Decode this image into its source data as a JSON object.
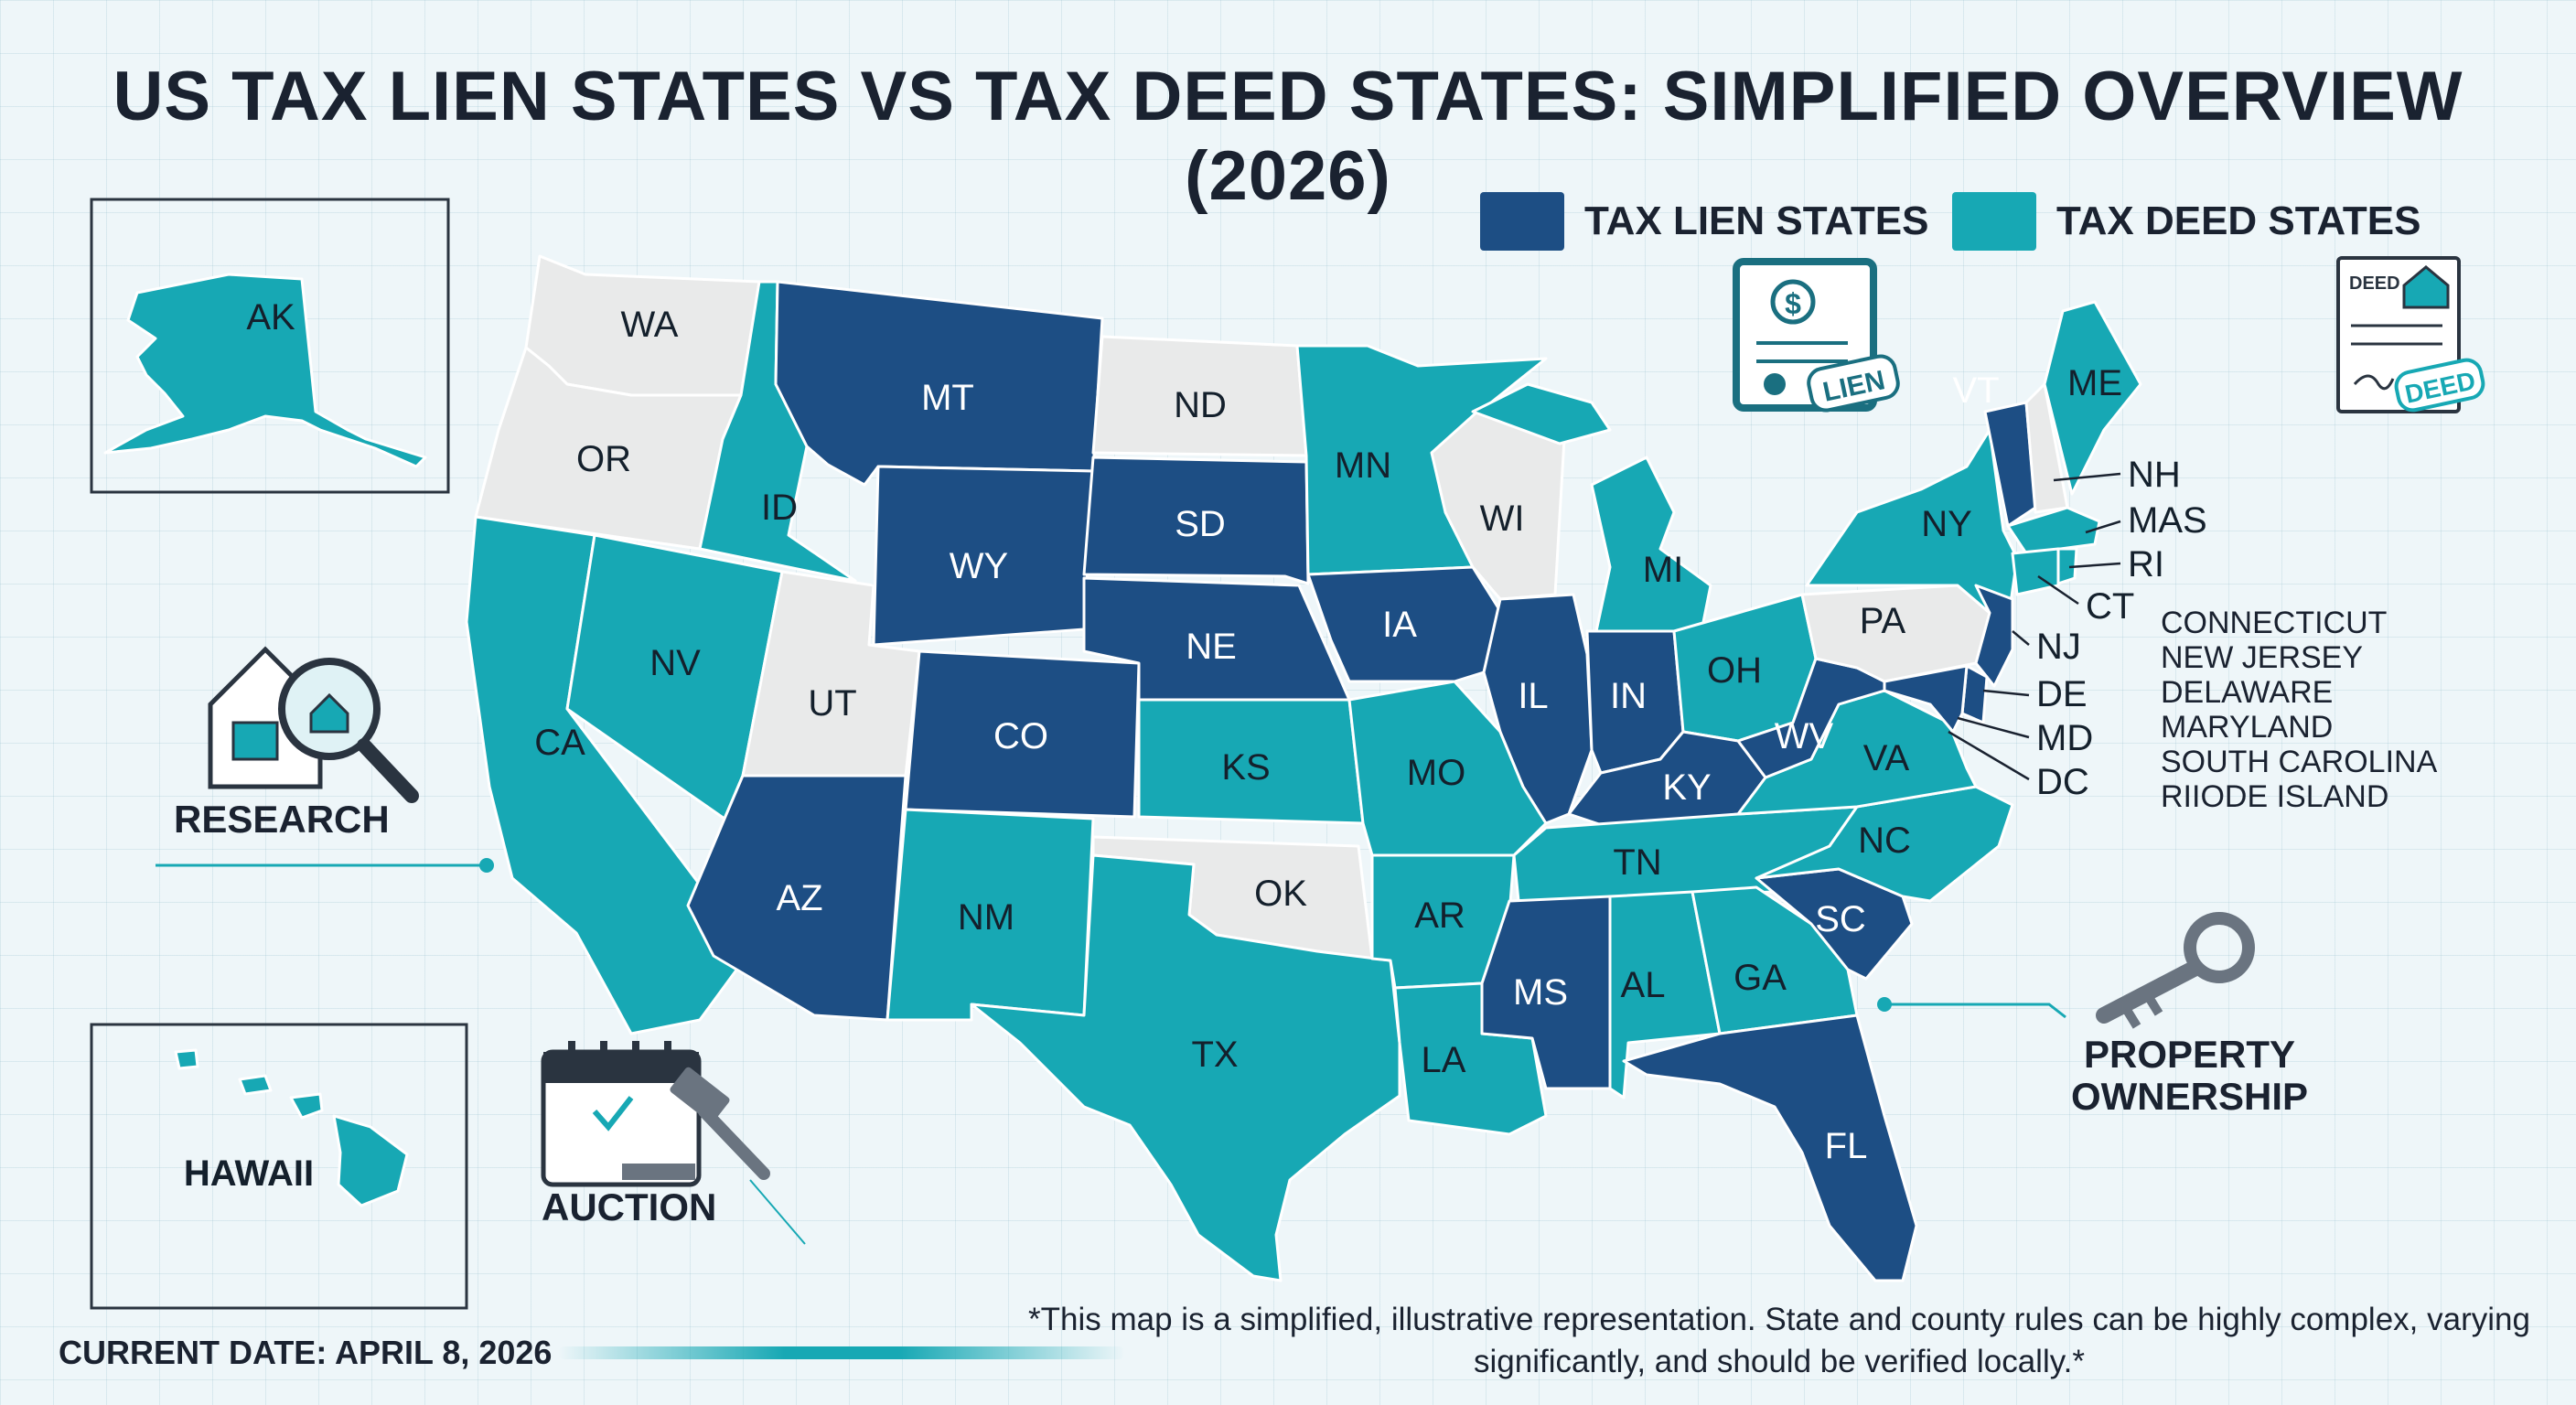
{
  "title": "US TAX LIEN STATES VS TAX DEED STATES: SIMPLIFIED OVERVIEW (2026)",
  "colors": {
    "lien": "#1d4e84",
    "deed": "#17a8b4",
    "other": "#e9eaea",
    "outline": "#ffffff"
  },
  "legend": {
    "lien_label": "TAX LIEN STATES",
    "deed_label": "TAX DEED STATES"
  },
  "icons": {
    "lien_certificate": {
      "stamp": "LIEN",
      "symbol": "$"
    },
    "deed_document": {
      "header": "DEED",
      "stamp": "DEED"
    },
    "research": "research-house-magnifier-icon",
    "auction": "auction-calendar-gavel-icon",
    "property": "key-icon"
  },
  "states": {
    "WA": {
      "label": "WA",
      "status": "other"
    },
    "OR": {
      "label": "OR",
      "status": "other"
    },
    "CA": {
      "label": "CA",
      "status": "deed"
    },
    "ID": {
      "label": "ID",
      "status": "deed"
    },
    "NV": {
      "label": "NV",
      "status": "deed"
    },
    "UT": {
      "label": "UT",
      "status": "other"
    },
    "AZ": {
      "label": "AZ",
      "status": "lien"
    },
    "MT": {
      "label": "MT",
      "status": "lien"
    },
    "WY": {
      "label": "WY",
      "status": "lien"
    },
    "CO": {
      "label": "CO",
      "status": "lien"
    },
    "NM": {
      "label": "NM",
      "status": "deed"
    },
    "ND": {
      "label": "ND",
      "status": "other"
    },
    "SD": {
      "label": "SD",
      "status": "lien"
    },
    "NE": {
      "label": "NE",
      "status": "lien"
    },
    "KS": {
      "label": "KS",
      "status": "deed"
    },
    "OK": {
      "label": "OK",
      "status": "other"
    },
    "TX": {
      "label": "TX",
      "status": "deed"
    },
    "MN": {
      "label": "MN",
      "status": "deed"
    },
    "IA": {
      "label": "IA",
      "status": "lien"
    },
    "MO": {
      "label": "MO",
      "status": "deed"
    },
    "AR": {
      "label": "AR",
      "status": "deed"
    },
    "LA": {
      "label": "LA",
      "status": "deed"
    },
    "WI": {
      "label": "WI",
      "status": "other"
    },
    "IL": {
      "label": "IL",
      "status": "lien"
    },
    "MI": {
      "label": "MI",
      "status": "deed"
    },
    "IN": {
      "label": "IN",
      "status": "lien"
    },
    "OH": {
      "label": "OH",
      "status": "deed"
    },
    "KY": {
      "label": "KY",
      "status": "lien"
    },
    "TN": {
      "label": "TN",
      "status": "deed"
    },
    "MS": {
      "label": "MS",
      "status": "lien"
    },
    "AL": {
      "label": "AL",
      "status": "deed"
    },
    "GA": {
      "label": "GA",
      "status": "deed"
    },
    "FL": {
      "label": "FL",
      "status": "lien"
    },
    "SC": {
      "label": "SC",
      "status": "lien"
    },
    "NC": {
      "label": "NC",
      "status": "deed"
    },
    "VA": {
      "label": "VA",
      "status": "deed"
    },
    "WV": {
      "label": "WV",
      "status": "lien"
    },
    "PA": {
      "label": "PA",
      "status": "other"
    },
    "NY": {
      "label": "NY",
      "status": "deed"
    },
    "NJ": {
      "label": "NJ",
      "status": "lien"
    },
    "DE": {
      "label": "DE",
      "status": "lien"
    },
    "MD": {
      "label": "MD",
      "status": "lien"
    },
    "VT": {
      "label": "VT",
      "status": "lien"
    },
    "NH": {
      "label": "NH",
      "status": "other"
    },
    "ME": {
      "label": "ME",
      "status": "deed"
    },
    "MA": {
      "label": "MAS",
      "status": "deed"
    },
    "CT": {
      "label": "CT",
      "status": "deed"
    },
    "RI": {
      "label": "RI",
      "status": "deed"
    },
    "AK": {
      "label": "AK",
      "status": "deed"
    },
    "HI": {
      "label": "HAWAII",
      "status": "deed"
    },
    "DC": {
      "label": "DC",
      "status": "lien"
    }
  },
  "northeast_callouts": [
    "NH",
    "MAS",
    "RI",
    "CT",
    "NJ",
    "DE",
    "MD",
    "DC"
  ],
  "small_states_list": [
    "CONNECTICUT",
    "NEW JERSEY",
    "DELAWARE",
    "MARYLAND",
    "SOUTH CAROLINA",
    "RIIODE ISLAND"
  ],
  "captions": {
    "research": "RESEARCH",
    "auction": "AUCTION",
    "property": "PROPERTY\nOWNERSHIP"
  },
  "current_date": "CURRENT DATE: APRIL 8, 2026",
  "footnote": "*This map is a simplified, illustrative representation. State and county rules can be highly complex, varying significantly, and should be verified locally.*"
}
